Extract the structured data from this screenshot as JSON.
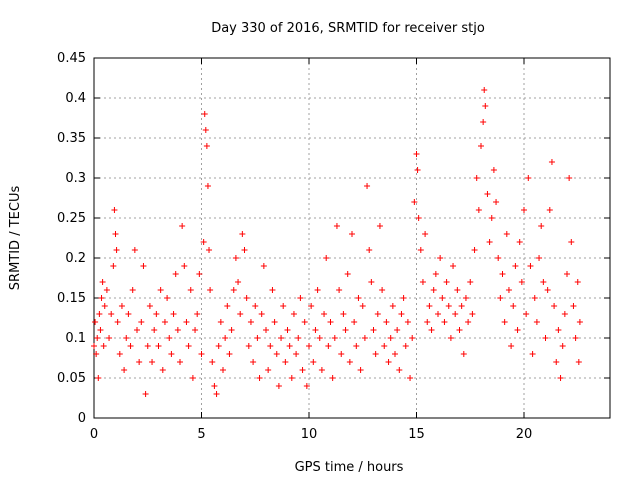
{
  "chart_data": {
    "type": "scatter",
    "title": "Day 330 of 2016, SRMTID for receiver stjo",
    "xlabel": "GPS time / hours",
    "ylabel": "SRMTID / TECUs",
    "xlim": [
      0,
      24
    ],
    "ylim": [
      0,
      0.45
    ],
    "xticks": [
      0,
      5,
      10,
      15,
      20
    ],
    "xtick_labels": [
      "0",
      "5",
      "10",
      "15",
      "20"
    ],
    "yticks": [
      0,
      0.05,
      0.1,
      0.15,
      0.2,
      0.25,
      0.3,
      0.35,
      0.4,
      0.45
    ],
    "ytick_labels": [
      "0",
      "0.05",
      "0.1",
      "0.15",
      "0.2",
      "0.25",
      "0.3",
      "0.35",
      "0.4",
      "0.45"
    ],
    "grid": true,
    "marker": "plus",
    "color": "#ff0000",
    "series": [
      {
        "name": "SRMTID",
        "points": [
          [
            0.0,
            0.09
          ],
          [
            0.05,
            0.12
          ],
          [
            0.1,
            0.08
          ],
          [
            0.15,
            0.1
          ],
          [
            0.2,
            0.05
          ],
          [
            0.25,
            0.13
          ],
          [
            0.3,
            0.11
          ],
          [
            0.35,
            0.15
          ],
          [
            0.4,
            0.17
          ],
          [
            0.45,
            0.09
          ],
          [
            0.5,
            0.14
          ],
          [
            0.6,
            0.16
          ],
          [
            0.7,
            0.1
          ],
          [
            0.8,
            0.13
          ],
          [
            0.9,
            0.19
          ],
          [
            0.95,
            0.26
          ],
          [
            1.0,
            0.23
          ],
          [
            1.05,
            0.21
          ],
          [
            1.1,
            0.12
          ],
          [
            1.2,
            0.08
          ],
          [
            1.3,
            0.14
          ],
          [
            1.4,
            0.06
          ],
          [
            1.5,
            0.1
          ],
          [
            1.6,
            0.13
          ],
          [
            1.7,
            0.09
          ],
          [
            1.8,
            0.16
          ],
          [
            1.9,
            0.21
          ],
          [
            2.0,
            0.11
          ],
          [
            2.1,
            0.07
          ],
          [
            2.2,
            0.12
          ],
          [
            2.3,
            0.19
          ],
          [
            2.4,
            0.03
          ],
          [
            2.5,
            0.09
          ],
          [
            2.6,
            0.14
          ],
          [
            2.7,
            0.07
          ],
          [
            2.8,
            0.11
          ],
          [
            2.9,
            0.13
          ],
          [
            3.0,
            0.09
          ],
          [
            3.1,
            0.16
          ],
          [
            3.2,
            0.06
          ],
          [
            3.3,
            0.12
          ],
          [
            3.4,
            0.15
          ],
          [
            3.5,
            0.1
          ],
          [
            3.6,
            0.08
          ],
          [
            3.7,
            0.13
          ],
          [
            3.8,
            0.18
          ],
          [
            3.9,
            0.11
          ],
          [
            4.0,
            0.07
          ],
          [
            4.1,
            0.24
          ],
          [
            4.2,
            0.19
          ],
          [
            4.3,
            0.12
          ],
          [
            4.4,
            0.09
          ],
          [
            4.5,
            0.16
          ],
          [
            4.6,
            0.05
          ],
          [
            4.7,
            0.11
          ],
          [
            4.8,
            0.13
          ],
          [
            4.9,
            0.18
          ],
          [
            5.0,
            0.08
          ],
          [
            5.1,
            0.22
          ],
          [
            5.15,
            0.38
          ],
          [
            5.2,
            0.36
          ],
          [
            5.25,
            0.34
          ],
          [
            5.3,
            0.29
          ],
          [
            5.35,
            0.21
          ],
          [
            5.4,
            0.16
          ],
          [
            5.5,
            0.07
          ],
          [
            5.6,
            0.04
          ],
          [
            5.7,
            0.03
          ],
          [
            5.8,
            0.09
          ],
          [
            5.9,
            0.12
          ],
          [
            6.0,
            0.06
          ],
          [
            6.1,
            0.1
          ],
          [
            6.2,
            0.14
          ],
          [
            6.3,
            0.08
          ],
          [
            6.4,
            0.11
          ],
          [
            6.5,
            0.16
          ],
          [
            6.6,
            0.2
          ],
          [
            6.7,
            0.17
          ],
          [
            6.8,
            0.13
          ],
          [
            6.9,
            0.23
          ],
          [
            7.0,
            0.21
          ],
          [
            7.1,
            0.15
          ],
          [
            7.2,
            0.09
          ],
          [
            7.3,
            0.12
          ],
          [
            7.4,
            0.07
          ],
          [
            7.5,
            0.14
          ],
          [
            7.6,
            0.1
          ],
          [
            7.7,
            0.05
          ],
          [
            7.8,
            0.13
          ],
          [
            7.9,
            0.19
          ],
          [
            8.0,
            0.11
          ],
          [
            8.1,
            0.06
          ],
          [
            8.2,
            0.09
          ],
          [
            8.3,
            0.16
          ],
          [
            8.4,
            0.12
          ],
          [
            8.5,
            0.08
          ],
          [
            8.6,
            0.04
          ],
          [
            8.7,
            0.1
          ],
          [
            8.8,
            0.14
          ],
          [
            8.9,
            0.07
          ],
          [
            9.0,
            0.11
          ],
          [
            9.1,
            0.09
          ],
          [
            9.2,
            0.05
          ],
          [
            9.3,
            0.13
          ],
          [
            9.4,
            0.08
          ],
          [
            9.5,
            0.1
          ],
          [
            9.6,
            0.15
          ],
          [
            9.7,
            0.06
          ],
          [
            9.8,
            0.12
          ],
          [
            9.9,
            0.04
          ],
          [
            10.0,
            0.09
          ],
          [
            10.1,
            0.14
          ],
          [
            10.2,
            0.07
          ],
          [
            10.3,
            0.11
          ],
          [
            10.4,
            0.16
          ],
          [
            10.5,
            0.1
          ],
          [
            10.6,
            0.06
          ],
          [
            10.7,
            0.13
          ],
          [
            10.8,
            0.2
          ],
          [
            10.9,
            0.09
          ],
          [
            11.0,
            0.12
          ],
          [
            11.1,
            0.05
          ],
          [
            11.2,
            0.1
          ],
          [
            11.3,
            0.24
          ],
          [
            11.4,
            0.16
          ],
          [
            11.5,
            0.08
          ],
          [
            11.6,
            0.13
          ],
          [
            11.7,
            0.11
          ],
          [
            11.8,
            0.18
          ],
          [
            11.9,
            0.07
          ],
          [
            12.0,
            0.23
          ],
          [
            12.1,
            0.12
          ],
          [
            12.2,
            0.09
          ],
          [
            12.3,
            0.15
          ],
          [
            12.4,
            0.06
          ],
          [
            12.5,
            0.14
          ],
          [
            12.6,
            0.1
          ],
          [
            12.7,
            0.29
          ],
          [
            12.8,
            0.21
          ],
          [
            12.9,
            0.17
          ],
          [
            13.0,
            0.11
          ],
          [
            13.1,
            0.08
          ],
          [
            13.2,
            0.13
          ],
          [
            13.3,
            0.24
          ],
          [
            13.4,
            0.16
          ],
          [
            13.5,
            0.09
          ],
          [
            13.6,
            0.12
          ],
          [
            13.7,
            0.07
          ],
          [
            13.8,
            0.1
          ],
          [
            13.9,
            0.14
          ],
          [
            14.0,
            0.08
          ],
          [
            14.1,
            0.11
          ],
          [
            14.2,
            0.06
          ],
          [
            14.3,
            0.13
          ],
          [
            14.4,
            0.15
          ],
          [
            14.5,
            0.09
          ],
          [
            14.6,
            0.12
          ],
          [
            14.7,
            0.05
          ],
          [
            14.8,
            0.1
          ],
          [
            14.9,
            0.27
          ],
          [
            15.0,
            0.33
          ],
          [
            15.05,
            0.31
          ],
          [
            15.1,
            0.25
          ],
          [
            15.2,
            0.21
          ],
          [
            15.3,
            0.17
          ],
          [
            15.4,
            0.23
          ],
          [
            15.5,
            0.12
          ],
          [
            15.6,
            0.14
          ],
          [
            15.7,
            0.11
          ],
          [
            15.8,
            0.16
          ],
          [
            15.9,
            0.18
          ],
          [
            16.0,
            0.13
          ],
          [
            16.1,
            0.2
          ],
          [
            16.2,
            0.15
          ],
          [
            16.3,
            0.12
          ],
          [
            16.4,
            0.17
          ],
          [
            16.5,
            0.14
          ],
          [
            16.6,
            0.1
          ],
          [
            16.7,
            0.19
          ],
          [
            16.8,
            0.13
          ],
          [
            16.9,
            0.16
          ],
          [
            17.0,
            0.11
          ],
          [
            17.1,
            0.14
          ],
          [
            17.2,
            0.08
          ],
          [
            17.3,
            0.15
          ],
          [
            17.4,
            0.12
          ],
          [
            17.5,
            0.17
          ],
          [
            17.6,
            0.13
          ],
          [
            17.7,
            0.21
          ],
          [
            17.8,
            0.3
          ],
          [
            17.9,
            0.26
          ],
          [
            18.0,
            0.34
          ],
          [
            18.1,
            0.37
          ],
          [
            18.15,
            0.41
          ],
          [
            18.2,
            0.39
          ],
          [
            18.3,
            0.28
          ],
          [
            18.4,
            0.22
          ],
          [
            18.5,
            0.25
          ],
          [
            18.6,
            0.31
          ],
          [
            18.7,
            0.27
          ],
          [
            18.8,
            0.2
          ],
          [
            18.9,
            0.15
          ],
          [
            19.0,
            0.18
          ],
          [
            19.1,
            0.12
          ],
          [
            19.2,
            0.23
          ],
          [
            19.3,
            0.16
          ],
          [
            19.4,
            0.09
          ],
          [
            19.5,
            0.14
          ],
          [
            19.6,
            0.19
          ],
          [
            19.7,
            0.11
          ],
          [
            19.8,
            0.22
          ],
          [
            19.9,
            0.17
          ],
          [
            20.0,
            0.26
          ],
          [
            20.1,
            0.13
          ],
          [
            20.2,
            0.3
          ],
          [
            20.3,
            0.19
          ],
          [
            20.4,
            0.08
          ],
          [
            20.5,
            0.15
          ],
          [
            20.6,
            0.12
          ],
          [
            20.7,
            0.2
          ],
          [
            20.8,
            0.24
          ],
          [
            20.9,
            0.17
          ],
          [
            21.0,
            0.1
          ],
          [
            21.1,
            0.16
          ],
          [
            21.2,
            0.26
          ],
          [
            21.3,
            0.32
          ],
          [
            21.4,
            0.14
          ],
          [
            21.5,
            0.07
          ],
          [
            21.6,
            0.11
          ],
          [
            21.7,
            0.05
          ],
          [
            21.8,
            0.09
          ],
          [
            21.9,
            0.13
          ],
          [
            22.0,
            0.18
          ],
          [
            22.1,
            0.3
          ],
          [
            22.2,
            0.22
          ],
          [
            22.3,
            0.14
          ],
          [
            22.4,
            0.1
          ],
          [
            22.5,
            0.17
          ],
          [
            22.55,
            0.07
          ],
          [
            22.6,
            0.12
          ]
        ]
      }
    ]
  }
}
